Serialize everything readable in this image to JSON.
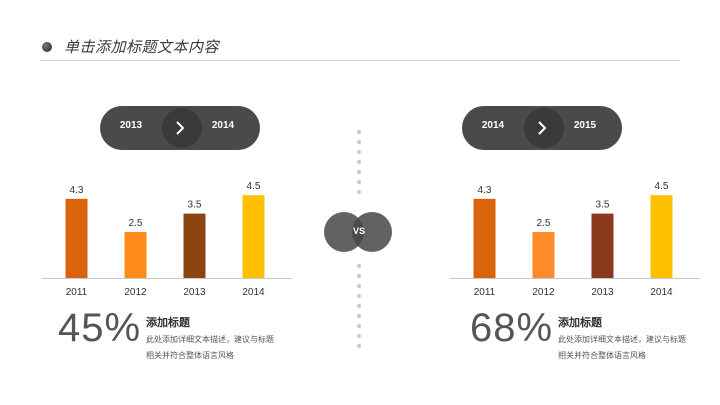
{
  "header": {
    "title": "单击添加标题文本内容"
  },
  "vs_label": "VS",
  "left": {
    "pill": {
      "from": "2013",
      "to": "2014"
    },
    "percent": "45%",
    "title": "添加标题",
    "desc": "此处添加详细文本描述，建议与标题相关并符合整体语言风格"
  },
  "right": {
    "pill": {
      "from": "2014",
      "to": "2015"
    },
    "percent": "68%",
    "title": "添加标题",
    "desc": "此处添加详细文本描述，建议与标题相关并符合整体语言风格"
  },
  "colors": {
    "pill": "#4a4a4a",
    "left_bars": [
      "#d9640b",
      "#ff8c1a",
      "#8b4513",
      "#ffc000"
    ],
    "right_bars": [
      "#d9640b",
      "#ff8c2a",
      "#8b3a1e",
      "#ffc000"
    ]
  },
  "chart_data": [
    {
      "type": "bar",
      "categories": [
        "2011",
        "2012",
        "2013",
        "2014"
      ],
      "values": [
        4.3,
        2.5,
        3.5,
        4.5
      ],
      "ylim": [
        0,
        5
      ],
      "grid": false
    },
    {
      "type": "bar",
      "categories": [
        "2011",
        "2012",
        "2013",
        "2014"
      ],
      "values": [
        4.3,
        2.5,
        3.5,
        4.5
      ],
      "ylim": [
        0,
        5
      ],
      "grid": false
    }
  ]
}
